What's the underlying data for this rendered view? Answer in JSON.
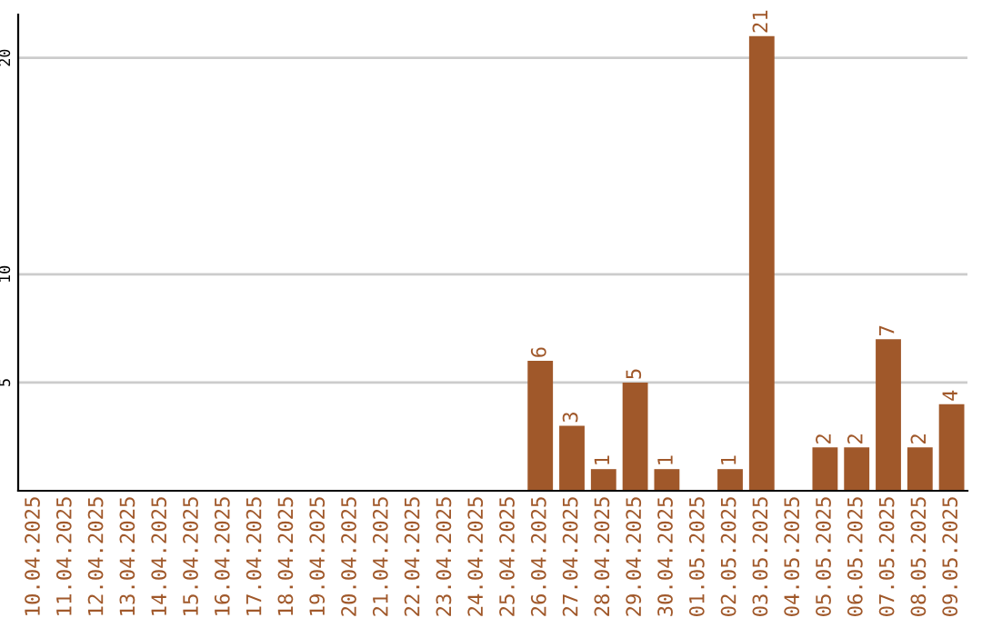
{
  "chart_data": {
    "type": "bar",
    "categories": [
      "10.04.2025",
      "11.04.2025",
      "12.04.2025",
      "13.04.2025",
      "14.04.2025",
      "15.04.2025",
      "16.04.2025",
      "17.04.2025",
      "18.04.2025",
      "19.04.2025",
      "20.04.2025",
      "21.04.2025",
      "22.04.2025",
      "23.04.2025",
      "24.04.2025",
      "25.04.2025",
      "26.04.2025",
      "27.04.2025",
      "28.04.2025",
      "29.04.2025",
      "30.04.2025",
      "01.05.2025",
      "02.05.2025",
      "03.05.2025",
      "04.05.2025",
      "05.05.2025",
      "06.05.2025",
      "07.05.2025",
      "08.05.2025",
      "09.05.2025"
    ],
    "values": [
      0,
      0,
      0,
      0,
      0,
      0,
      0,
      0,
      0,
      0,
      0,
      0,
      0,
      0,
      0,
      0,
      6,
      3,
      1,
      5,
      1,
      0,
      1,
      21,
      0,
      2,
      2,
      7,
      2,
      4
    ],
    "value_labels": [
      null,
      null,
      null,
      null,
      null,
      null,
      null,
      null,
      null,
      null,
      null,
      null,
      null,
      null,
      null,
      null,
      "6",
      "3",
      "1",
      "5",
      "1",
      null,
      "1",
      "21",
      null,
      "2",
      "2",
      "7",
      "2",
      "4"
    ],
    "color": "#a0582a",
    "ylim": [
      0,
      22
    ],
    "yticks": [
      5,
      10,
      20
    ],
    "grid": "y"
  }
}
